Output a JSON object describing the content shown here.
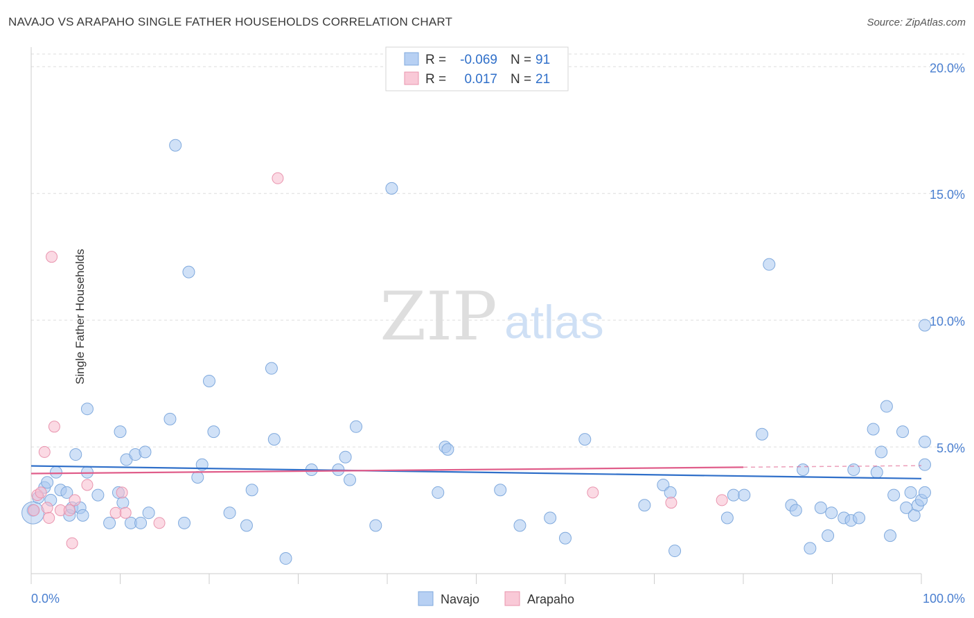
{
  "title": "NAVAJO VS ARAPAHO SINGLE FATHER HOUSEHOLDS CORRELATION CHART",
  "source": "Source: ZipAtlas.com",
  "watermark": {
    "zip": "ZIP",
    "atlas": "atlas"
  },
  "colors": {
    "navajo_fill": "#a9c8f0",
    "navajo_stroke": "#7fa9dd",
    "navajo_line": "#2f6fc9",
    "arapaho_fill": "#f7bccd",
    "arapaho_stroke": "#e994ae",
    "arapaho_line": "#e05d8a",
    "axis_text": "#4a7fd0",
    "grid": "#dddddd"
  },
  "legend_top": {
    "rows": [
      {
        "r_label": "R =",
        "r_value": "-0.069",
        "n_label": "N =",
        "n_value": "91"
      },
      {
        "r_label": "R =",
        "r_value": "0.017",
        "n_label": "N =",
        "n_value": "21"
      }
    ]
  },
  "legend_bottom": {
    "navajo": "Navajo",
    "arapaho": "Arapaho"
  },
  "chart_data": {
    "type": "scatter",
    "title": "NAVAJO VS ARAPAHO SINGLE FATHER HOUSEHOLDS CORRELATION CHART",
    "xlabel": "",
    "ylabel": "Single Father Households",
    "xlim": [
      0,
      100
    ],
    "ylim": [
      0,
      20.5
    ],
    "x_tick_labels": [
      "0.0%",
      "100.0%"
    ],
    "y_ticks": [
      5,
      10,
      15,
      20
    ],
    "y_tick_labels": [
      "5.0%",
      "10.0%",
      "15.0%",
      "20.0%"
    ],
    "legend_position": "top-center",
    "series": [
      {
        "name": "Navajo",
        "r": -0.069,
        "n": 91,
        "trend": {
          "x0": 0,
          "y0": 4.25,
          "x1": 100,
          "y1": 3.75
        },
        "points": [
          [
            0.2,
            2.5
          ],
          [
            0.8,
            3.0
          ],
          [
            1.5,
            3.4
          ],
          [
            1.8,
            3.6
          ],
          [
            2.2,
            2.9
          ],
          [
            2.8,
            4.0
          ],
          [
            3.3,
            3.3
          ],
          [
            4.0,
            3.2
          ],
          [
            4.3,
            2.3
          ],
          [
            4.6,
            2.6
          ],
          [
            5.0,
            4.7
          ],
          [
            5.5,
            2.6
          ],
          [
            5.8,
            2.3
          ],
          [
            6.3,
            4.0
          ],
          [
            6.3,
            6.5
          ],
          [
            7.5,
            3.1
          ],
          [
            8.8,
            2.0
          ],
          [
            9.8,
            3.2
          ],
          [
            10.0,
            5.6
          ],
          [
            10.3,
            2.8
          ],
          [
            10.7,
            4.5
          ],
          [
            11.2,
            2.0
          ],
          [
            11.7,
            4.7
          ],
          [
            12.3,
            2.0
          ],
          [
            12.8,
            4.8
          ],
          [
            13.2,
            2.4
          ],
          [
            15.6,
            6.1
          ],
          [
            16.2,
            16.9
          ],
          [
            17.2,
            2.0
          ],
          [
            17.7,
            11.9
          ],
          [
            18.7,
            3.8
          ],
          [
            19.2,
            4.3
          ],
          [
            20.0,
            7.6
          ],
          [
            20.5,
            5.6
          ],
          [
            22.3,
            2.4
          ],
          [
            24.2,
            1.9
          ],
          [
            24.8,
            3.3
          ],
          [
            27.0,
            8.1
          ],
          [
            27.3,
            5.3
          ],
          [
            28.6,
            0.6
          ],
          [
            31.5,
            4.1
          ],
          [
            34.5,
            4.1
          ],
          [
            35.3,
            4.6
          ],
          [
            35.8,
            3.7
          ],
          [
            36.5,
            5.8
          ],
          [
            38.7,
            1.9
          ],
          [
            40.5,
            15.2
          ],
          [
            45.7,
            3.2
          ],
          [
            46.5,
            5.0
          ],
          [
            46.8,
            4.9
          ],
          [
            52.7,
            3.3
          ],
          [
            54.9,
            1.9
          ],
          [
            58.3,
            2.2
          ],
          [
            60.0,
            1.4
          ],
          [
            62.2,
            5.3
          ],
          [
            68.9,
            2.7
          ],
          [
            71.0,
            3.5
          ],
          [
            71.8,
            3.2
          ],
          [
            72.3,
            0.9
          ],
          [
            78.2,
            2.2
          ],
          [
            78.9,
            3.1
          ],
          [
            80.1,
            3.1
          ],
          [
            82.1,
            5.5
          ],
          [
            82.9,
            12.2
          ],
          [
            85.4,
            2.7
          ],
          [
            85.9,
            2.5
          ],
          [
            86.7,
            4.1
          ],
          [
            87.5,
            1.0
          ],
          [
            88.7,
            2.6
          ],
          [
            89.5,
            1.5
          ],
          [
            89.9,
            2.4
          ],
          [
            91.3,
            2.2
          ],
          [
            92.1,
            2.1
          ],
          [
            92.4,
            4.1
          ],
          [
            93.0,
            2.2
          ],
          [
            94.6,
            5.7
          ],
          [
            95.0,
            4.0
          ],
          [
            95.5,
            4.8
          ],
          [
            96.1,
            6.6
          ],
          [
            96.5,
            1.5
          ],
          [
            96.9,
            3.1
          ],
          [
            97.9,
            5.6
          ],
          [
            98.3,
            2.6
          ],
          [
            98.8,
            3.2
          ],
          [
            99.2,
            2.3
          ],
          [
            99.6,
            2.7
          ],
          [
            100.0,
            2.9
          ],
          [
            100.6,
            3.2
          ],
          [
            101.0,
            9.8
          ],
          [
            101.8,
            5.2
          ],
          [
            102.4,
            4.3
          ]
        ]
      },
      {
        "name": "Arapaho",
        "r": 0.017,
        "n": 21,
        "trend": {
          "x0": 0,
          "y0": 3.95,
          "x1": 80,
          "y1": 4.2
        },
        "points": [
          [
            0.3,
            2.5
          ],
          [
            0.7,
            3.1
          ],
          [
            1.1,
            3.2
          ],
          [
            1.5,
            4.8
          ],
          [
            1.8,
            2.6
          ],
          [
            2.0,
            2.2
          ],
          [
            2.3,
            12.5
          ],
          [
            2.6,
            5.8
          ],
          [
            3.3,
            2.5
          ],
          [
            4.3,
            2.5
          ],
          [
            4.6,
            1.2
          ],
          [
            4.9,
            2.9
          ],
          [
            6.3,
            3.5
          ],
          [
            9.5,
            2.4
          ],
          [
            10.2,
            3.2
          ],
          [
            10.6,
            2.4
          ],
          [
            14.4,
            2.0
          ],
          [
            27.7,
            15.6
          ],
          [
            63.1,
            3.2
          ],
          [
            71.9,
            2.8
          ],
          [
            77.6,
            2.9
          ]
        ]
      }
    ]
  }
}
